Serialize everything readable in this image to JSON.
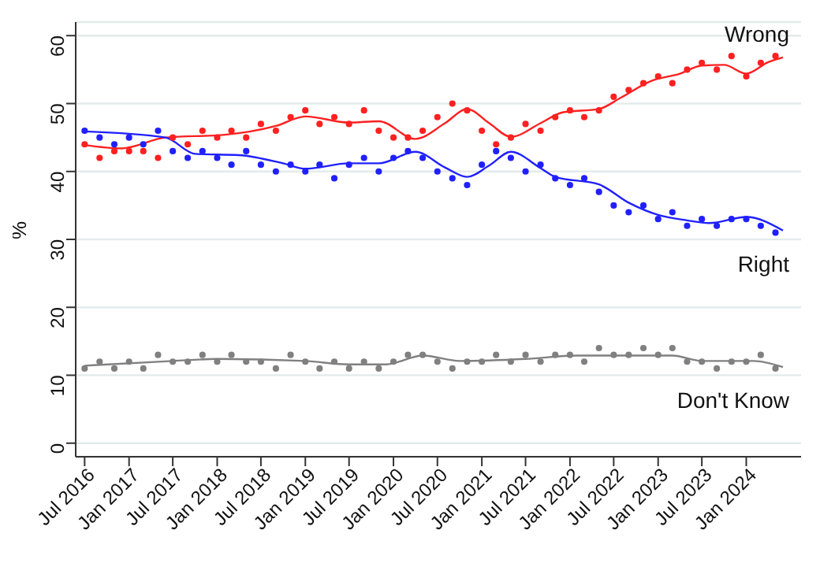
{
  "chart_data": {
    "type": "scatter",
    "ylabel": "%",
    "xlim": [
      "2016-05-25",
      "2024-08-15"
    ],
    "ylim": [
      -2,
      62
    ],
    "yticks": [
      0,
      10,
      20,
      30,
      40,
      50,
      60
    ],
    "xticks": [
      {
        "value": "2016-07",
        "label": "Jul 2016"
      },
      {
        "value": "2017-01",
        "label": "Jan 2017"
      },
      {
        "value": "2017-07",
        "label": "Jul 2017"
      },
      {
        "value": "2018-01",
        "label": "Jan 2018"
      },
      {
        "value": "2018-07",
        "label": "Jul 2018"
      },
      {
        "value": "2019-01",
        "label": "Jan 2019"
      },
      {
        "value": "2019-07",
        "label": "Jul 2019"
      },
      {
        "value": "2020-01",
        "label": "Jan 2020"
      },
      {
        "value": "2020-07",
        "label": "Jul 2020"
      },
      {
        "value": "2021-01",
        "label": "Jan 2021"
      },
      {
        "value": "2021-07",
        "label": "Jul 2021"
      },
      {
        "value": "2022-01",
        "label": "Jan 2022"
      },
      {
        "value": "2022-07",
        "label": "Jul 2022"
      },
      {
        "value": "2023-01",
        "label": "Jan 2023"
      },
      {
        "value": "2023-07",
        "label": "Jul 2023"
      },
      {
        "value": "2024-01",
        "label": "Jan 2024"
      }
    ],
    "grid": "y",
    "legend": false,
    "x": [
      "2016-07",
      "2016-09",
      "2016-11",
      "2017-01",
      "2017-03",
      "2017-05",
      "2017-07",
      "2017-09",
      "2017-11",
      "2018-01",
      "2018-03",
      "2018-05",
      "2018-07",
      "2018-09",
      "2018-11",
      "2019-01",
      "2019-03",
      "2019-05",
      "2019-07",
      "2019-09",
      "2019-11",
      "2020-01",
      "2020-03",
      "2020-05",
      "2020-07",
      "2020-09",
      "2020-11",
      "2021-01",
      "2021-03",
      "2021-05",
      "2021-07",
      "2021-09",
      "2021-11",
      "2022-01",
      "2022-03",
      "2022-05",
      "2022-07",
      "2022-09",
      "2022-11",
      "2023-01",
      "2023-03",
      "2023-05",
      "2023-07",
      "2023-09",
      "2023-11",
      "2024-01",
      "2024-03",
      "2024-05"
    ],
    "series": [
      {
        "marker": "circle",
        "color": "#ff2020",
        "values": [
          44,
          42,
          43,
          43,
          43,
          42,
          45,
          44,
          46,
          45,
          46,
          45,
          47,
          46,
          48,
          49,
          47,
          48,
          47,
          49,
          46,
          45,
          45,
          46,
          48,
          50,
          49,
          46,
          44,
          45,
          47,
          46,
          48,
          49,
          48,
          49,
          51,
          52,
          53,
          54,
          53,
          55,
          56,
          55,
          57,
          54,
          56,
          57
        ]
      },
      {
        "marker": "circle",
        "color": "#2020ff",
        "values": [
          46,
          45,
          44,
          45,
          44,
          46,
          43,
          42,
          43,
          42,
          41,
          43,
          41,
          40,
          41,
          40,
          41,
          39,
          41,
          42,
          40,
          42,
          43,
          42,
          40,
          39,
          38,
          41,
          43,
          42,
          40,
          41,
          39,
          38,
          39,
          37,
          35,
          34,
          35,
          33,
          34,
          32,
          33,
          32,
          33,
          33,
          32,
          31
        ]
      },
      {
        "marker": "circle",
        "color": "#808080",
        "values": [
          11,
          12,
          11,
          12,
          11,
          13,
          12,
          12,
          13,
          12,
          13,
          12,
          12,
          11,
          13,
          12,
          11,
          12,
          11,
          12,
          11,
          12,
          13,
          13,
          12,
          11,
          12,
          12,
          13,
          12,
          13,
          12,
          13,
          13,
          12,
          14,
          13,
          13,
          14,
          13,
          14,
          12,
          12,
          11,
          12,
          12,
          13,
          11
        ]
      },
      {
        "type": "line",
        "name": "Wrong",
        "marker": "none",
        "line_style": "solid",
        "color": "#ff2020",
        "x": [
          "2016-07",
          "2016-12",
          "2017-06",
          "2018-02",
          "2018-09",
          "2019-01",
          "2019-07",
          "2019-11",
          "2020-04",
          "2020-08",
          "2020-11",
          "2021-02",
          "2021-05",
          "2021-09",
          "2021-12",
          "2022-05",
          "2022-08",
          "2022-12",
          "2023-04",
          "2023-07",
          "2023-10",
          "2024-01",
          "2024-04",
          "2024-06"
        ],
        "values": [
          43.9,
          43.4,
          45.0,
          45.4,
          46.7,
          48.1,
          47.2,
          47.4,
          44.8,
          47.1,
          49.2,
          47.1,
          45.1,
          47.1,
          48.7,
          49.2,
          50.9,
          53.3,
          54.4,
          55.6,
          55.7,
          54.4,
          56.1,
          56.8
        ]
      },
      {
        "type": "line",
        "name": "Right",
        "marker": "none",
        "line_style": "solid",
        "color": "#2020ff",
        "x": [
          "2016-07",
          "2017-06",
          "2017-10",
          "2018-04",
          "2018-10",
          "2019-01",
          "2019-07",
          "2019-11",
          "2020-04",
          "2020-08",
          "2020-11",
          "2021-02",
          "2021-05",
          "2021-09",
          "2021-11",
          "2022-05",
          "2022-09",
          "2023-01",
          "2023-05",
          "2023-08",
          "2024-01",
          "2024-06"
        ],
        "values": [
          45.9,
          45.0,
          42.6,
          42.4,
          41.2,
          40.4,
          41.2,
          41.2,
          42.9,
          40.6,
          39.2,
          40.9,
          42.9,
          40.5,
          39.2,
          38.1,
          35.4,
          33.6,
          32.8,
          32.4,
          33.3,
          31.3
        ]
      },
      {
        "type": "line",
        "name": "Don't Know",
        "marker": "none",
        "line_style": "solid",
        "color": "#808080",
        "x": [
          "2016-07",
          "2017-07",
          "2018-01",
          "2019-01",
          "2019-07",
          "2019-12",
          "2020-05",
          "2020-10",
          "2021-07",
          "2022-02",
          "2023-03",
          "2023-07",
          "2024-02",
          "2024-06"
        ],
        "values": [
          11.4,
          12.1,
          12.4,
          12.1,
          11.6,
          11.6,
          12.9,
          12.1,
          12.4,
          12.9,
          12.9,
          12.1,
          12.1,
          11.2
        ]
      }
    ]
  }
}
